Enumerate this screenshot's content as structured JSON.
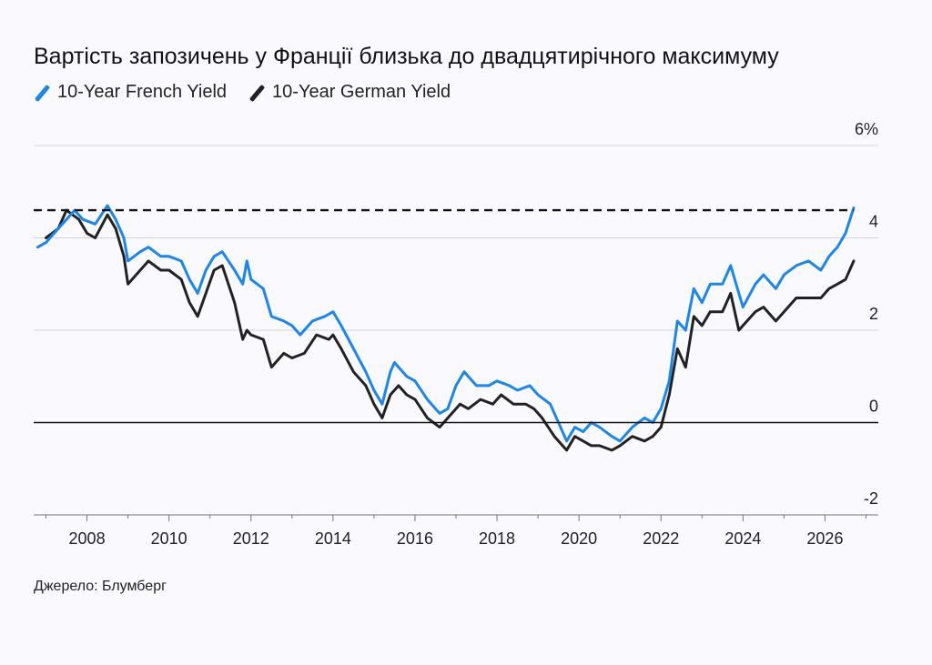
{
  "title": "Вартість запозичень у Франції близька до двадцятирічного максимуму",
  "source": "Джерело: Блумберг",
  "colors": {
    "french": "#1a86f0",
    "german": "#222222",
    "background": "#fafafe",
    "grid": "#d3d3db"
  },
  "chart_data": {
    "type": "line",
    "title": "Вартість запозичень у Франції близька до двадцятирічного максимуму",
    "xlabel": "",
    "ylabel": "",
    "xlim": [
      2006.7,
      2027.3
    ],
    "ylim": [
      -2,
      6
    ],
    "x_ticks": [
      2008,
      2010,
      2012,
      2014,
      2016,
      2018,
      2020,
      2022,
      2024,
      2026
    ],
    "y_ticks": [
      {
        "value": 6,
        "label": "6%"
      },
      {
        "value": 4,
        "label": "4"
      },
      {
        "value": 2,
        "label": "2"
      },
      {
        "value": 0,
        "label": "0"
      },
      {
        "value": -2,
        "label": "-2"
      }
    ],
    "reference_line": {
      "value": 4.6,
      "style": "dashed"
    },
    "zero_line": true,
    "grid": true,
    "legend_position": "top-left",
    "series": [
      {
        "name": "10-Year French Yield",
        "color": "#1a86f0",
        "points": [
          [
            2006.8,
            3.8
          ],
          [
            2007.0,
            3.9
          ],
          [
            2007.2,
            4.1
          ],
          [
            2007.5,
            4.4
          ],
          [
            2007.7,
            4.6
          ],
          [
            2007.9,
            4.4
          ],
          [
            2008.2,
            4.3
          ],
          [
            2008.5,
            4.7
          ],
          [
            2008.7,
            4.4
          ],
          [
            2008.9,
            4.0
          ],
          [
            2009.0,
            3.5
          ],
          [
            2009.3,
            3.7
          ],
          [
            2009.5,
            3.8
          ],
          [
            2009.8,
            3.6
          ],
          [
            2010.0,
            3.6
          ],
          [
            2010.3,
            3.5
          ],
          [
            2010.5,
            3.1
          ],
          [
            2010.7,
            2.8
          ],
          [
            2010.9,
            3.3
          ],
          [
            2011.1,
            3.6
          ],
          [
            2011.3,
            3.7
          ],
          [
            2011.6,
            3.3
          ],
          [
            2011.8,
            3.0
          ],
          [
            2011.9,
            3.5
          ],
          [
            2012.0,
            3.1
          ],
          [
            2012.3,
            2.9
          ],
          [
            2012.5,
            2.3
          ],
          [
            2012.8,
            2.2
          ],
          [
            2013.0,
            2.1
          ],
          [
            2013.2,
            1.9
          ],
          [
            2013.5,
            2.2
          ],
          [
            2013.8,
            2.3
          ],
          [
            2014.0,
            2.4
          ],
          [
            2014.2,
            2.1
          ],
          [
            2014.5,
            1.6
          ],
          [
            2014.8,
            1.1
          ],
          [
            2015.0,
            0.7
          ],
          [
            2015.2,
            0.4
          ],
          [
            2015.4,
            1.1
          ],
          [
            2015.5,
            1.3
          ],
          [
            2015.8,
            1.0
          ],
          [
            2016.0,
            0.9
          ],
          [
            2016.3,
            0.5
          ],
          [
            2016.6,
            0.2
          ],
          [
            2016.8,
            0.3
          ],
          [
            2017.0,
            0.8
          ],
          [
            2017.2,
            1.1
          ],
          [
            2017.5,
            0.8
          ],
          [
            2017.8,
            0.8
          ],
          [
            2018.0,
            0.9
          ],
          [
            2018.3,
            0.8
          ],
          [
            2018.5,
            0.7
          ],
          [
            2018.8,
            0.8
          ],
          [
            2019.0,
            0.6
          ],
          [
            2019.3,
            0.4
          ],
          [
            2019.5,
            0.0
          ],
          [
            2019.7,
            -0.4
          ],
          [
            2019.9,
            -0.1
          ],
          [
            2020.1,
            -0.2
          ],
          [
            2020.3,
            0.0
          ],
          [
            2020.5,
            -0.1
          ],
          [
            2020.8,
            -0.3
          ],
          [
            2021.0,
            -0.4
          ],
          [
            2021.3,
            -0.1
          ],
          [
            2021.6,
            0.1
          ],
          [
            2021.8,
            0.0
          ],
          [
            2022.0,
            0.3
          ],
          [
            2022.2,
            0.9
          ],
          [
            2022.4,
            2.2
          ],
          [
            2022.6,
            2.0
          ],
          [
            2022.8,
            2.9
          ],
          [
            2023.0,
            2.6
          ],
          [
            2023.2,
            3.0
          ],
          [
            2023.5,
            3.0
          ],
          [
            2023.7,
            3.4
          ],
          [
            2023.9,
            2.8
          ],
          [
            2024.0,
            2.5
          ],
          [
            2024.3,
            3.0
          ],
          [
            2024.5,
            3.2
          ],
          [
            2024.8,
            2.9
          ],
          [
            2025.0,
            3.2
          ],
          [
            2025.3,
            3.4
          ],
          [
            2025.6,
            3.5
          ],
          [
            2025.9,
            3.3
          ],
          [
            2026.1,
            3.6
          ],
          [
            2026.3,
            3.8
          ],
          [
            2026.5,
            4.1
          ],
          [
            2026.7,
            4.65
          ]
        ]
      },
      {
        "name": "10-Year German Yield",
        "color": "#222222",
        "points": [
          [
            2007.0,
            4.0
          ],
          [
            2007.3,
            4.2
          ],
          [
            2007.5,
            4.6
          ],
          [
            2007.8,
            4.4
          ],
          [
            2008.0,
            4.1
          ],
          [
            2008.2,
            4.0
          ],
          [
            2008.5,
            4.5
          ],
          [
            2008.7,
            4.2
          ],
          [
            2008.9,
            3.6
          ],
          [
            2009.0,
            3.0
          ],
          [
            2009.3,
            3.3
          ],
          [
            2009.5,
            3.5
          ],
          [
            2009.8,
            3.3
          ],
          [
            2010.0,
            3.3
          ],
          [
            2010.3,
            3.1
          ],
          [
            2010.5,
            2.6
          ],
          [
            2010.7,
            2.3
          ],
          [
            2010.9,
            2.8
          ],
          [
            2011.1,
            3.3
          ],
          [
            2011.3,
            3.4
          ],
          [
            2011.6,
            2.6
          ],
          [
            2011.8,
            1.8
          ],
          [
            2011.9,
            2.0
          ],
          [
            2012.0,
            1.9
          ],
          [
            2012.3,
            1.8
          ],
          [
            2012.5,
            1.2
          ],
          [
            2012.8,
            1.5
          ],
          [
            2013.0,
            1.4
          ],
          [
            2013.3,
            1.5
          ],
          [
            2013.6,
            1.9
          ],
          [
            2013.9,
            1.8
          ],
          [
            2014.0,
            1.9
          ],
          [
            2014.2,
            1.6
          ],
          [
            2014.5,
            1.1
          ],
          [
            2014.8,
            0.8
          ],
          [
            2015.0,
            0.4
          ],
          [
            2015.2,
            0.1
          ],
          [
            2015.4,
            0.6
          ],
          [
            2015.6,
            0.8
          ],
          [
            2015.8,
            0.6
          ],
          [
            2016.0,
            0.5
          ],
          [
            2016.3,
            0.1
          ],
          [
            2016.6,
            -0.1
          ],
          [
            2016.9,
            0.2
          ],
          [
            2017.1,
            0.4
          ],
          [
            2017.3,
            0.3
          ],
          [
            2017.6,
            0.5
          ],
          [
            2017.9,
            0.4
          ],
          [
            2018.1,
            0.6
          ],
          [
            2018.4,
            0.4
          ],
          [
            2018.7,
            0.4
          ],
          [
            2018.9,
            0.3
          ],
          [
            2019.1,
            0.1
          ],
          [
            2019.4,
            -0.3
          ],
          [
            2019.7,
            -0.6
          ],
          [
            2019.9,
            -0.3
          ],
          [
            2020.1,
            -0.4
          ],
          [
            2020.3,
            -0.5
          ],
          [
            2020.5,
            -0.5
          ],
          [
            2020.8,
            -0.6
          ],
          [
            2021.0,
            -0.5
          ],
          [
            2021.3,
            -0.3
          ],
          [
            2021.6,
            -0.4
          ],
          [
            2021.8,
            -0.3
          ],
          [
            2022.0,
            -0.1
          ],
          [
            2022.2,
            0.6
          ],
          [
            2022.4,
            1.6
          ],
          [
            2022.6,
            1.2
          ],
          [
            2022.8,
            2.3
          ],
          [
            2023.0,
            2.1
          ],
          [
            2023.2,
            2.4
          ],
          [
            2023.5,
            2.4
          ],
          [
            2023.7,
            2.8
          ],
          [
            2023.9,
            2.0
          ],
          [
            2024.0,
            2.1
          ],
          [
            2024.3,
            2.4
          ],
          [
            2024.5,
            2.5
          ],
          [
            2024.8,
            2.2
          ],
          [
            2025.0,
            2.4
          ],
          [
            2025.3,
            2.7
          ],
          [
            2025.6,
            2.7
          ],
          [
            2025.9,
            2.7
          ],
          [
            2026.1,
            2.9
          ],
          [
            2026.3,
            3.0
          ],
          [
            2026.5,
            3.1
          ],
          [
            2026.7,
            3.5
          ]
        ]
      }
    ]
  }
}
